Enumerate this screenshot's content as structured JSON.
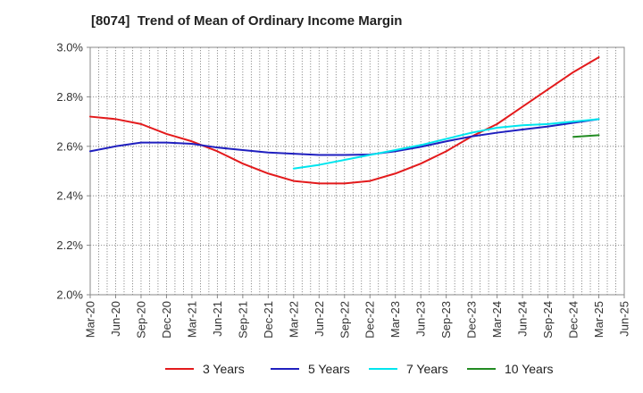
{
  "title": "[8074]  Trend of Mean of Ordinary Income Margin",
  "chart_data": {
    "type": "line",
    "title": "[8074]  Trend of Mean of Ordinary Income Margin",
    "xlabel": "",
    "ylabel": "",
    "ylim": [
      2.0,
      3.0
    ],
    "y_ticks": [
      "2.0%",
      "2.2%",
      "2.4%",
      "2.6%",
      "2.8%",
      "3.0%"
    ],
    "y_tick_values": [
      2.0,
      2.2,
      2.4,
      2.6,
      2.8,
      3.0
    ],
    "x_ticks": [
      "Mar-20",
      "Jun-20",
      "Sep-20",
      "Dec-20",
      "Mar-21",
      "Jun-21",
      "Sep-21",
      "Dec-21",
      "Mar-22",
      "Jun-22",
      "Sep-22",
      "Dec-22",
      "Mar-23",
      "Jun-23",
      "Sep-23",
      "Dec-23",
      "Mar-24",
      "Jun-24",
      "Sep-24",
      "Dec-24",
      "Mar-25",
      "Jun-25"
    ],
    "grid": true,
    "legend_position": "bottom",
    "series": [
      {
        "name": "3 Years",
        "color": "#e31a1c",
        "x": [
          "Mar-20",
          "Jun-20",
          "Sep-20",
          "Dec-20",
          "Mar-21",
          "Jun-21",
          "Sep-21",
          "Dec-21",
          "Mar-22",
          "Jun-22",
          "Sep-22",
          "Dec-22",
          "Mar-23",
          "Jun-23",
          "Sep-23",
          "Dec-23",
          "Mar-24",
          "Jun-24",
          "Sep-24",
          "Dec-24",
          "Mar-25"
        ],
        "values": [
          2.72,
          2.71,
          2.69,
          2.65,
          2.62,
          2.58,
          2.53,
          2.49,
          2.46,
          2.45,
          2.45,
          2.46,
          2.49,
          2.53,
          2.58,
          2.64,
          2.69,
          2.76,
          2.83,
          2.9,
          2.96
        ]
      },
      {
        "name": "5 Years",
        "color": "#1f1fbf",
        "x": [
          "Mar-20",
          "Jun-20",
          "Sep-20",
          "Dec-20",
          "Mar-21",
          "Jun-21",
          "Sep-21",
          "Dec-21",
          "Mar-22",
          "Jun-22",
          "Sep-22",
          "Dec-22",
          "Mar-23",
          "Jun-23",
          "Sep-23",
          "Dec-23",
          "Mar-24",
          "Jun-24",
          "Sep-24",
          "Dec-24",
          "Mar-25"
        ],
        "values": [
          2.58,
          2.6,
          2.615,
          2.615,
          2.61,
          2.595,
          2.585,
          2.575,
          2.57,
          2.565,
          2.565,
          2.567,
          2.58,
          2.598,
          2.62,
          2.64,
          2.655,
          2.668,
          2.68,
          2.695,
          2.71
        ]
      },
      {
        "name": "7 Years",
        "color": "#00e5ee",
        "x": [
          "Mar-22",
          "Jun-22",
          "Sep-22",
          "Dec-22",
          "Mar-23",
          "Jun-23",
          "Sep-23",
          "Dec-23",
          "Mar-24",
          "Jun-24",
          "Sep-24",
          "Dec-24",
          "Mar-25"
        ],
        "values": [
          2.51,
          2.525,
          2.545,
          2.565,
          2.585,
          2.605,
          2.63,
          2.655,
          2.675,
          2.685,
          2.69,
          2.7,
          2.71
        ]
      },
      {
        "name": "10 Years",
        "color": "#228b22",
        "x": [
          "Dec-24",
          "Mar-25"
        ],
        "values": [
          2.638,
          2.645
        ]
      }
    ]
  }
}
